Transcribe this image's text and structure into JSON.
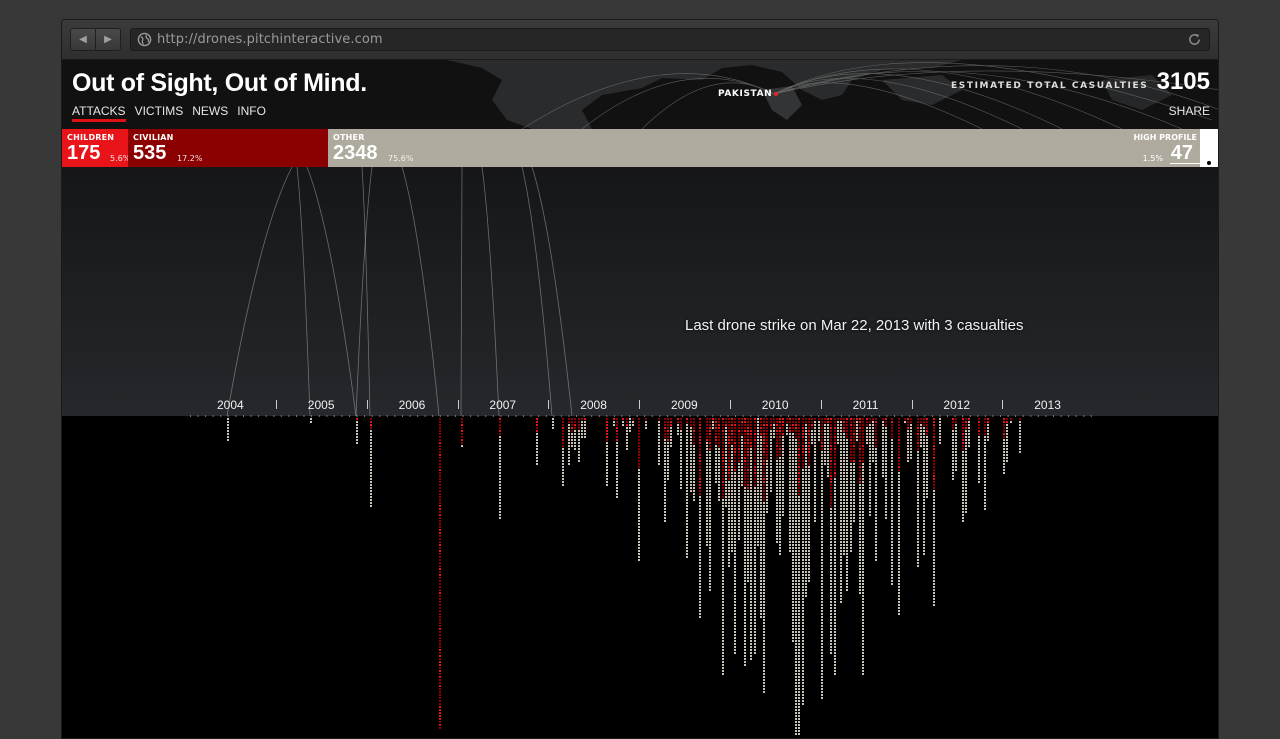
{
  "browser": {
    "url": "http://drones.pitchinteractive.com",
    "back_icon": "back-arrow-icon",
    "forward_icon": "forward-arrow-icon",
    "site_icon": "globe-icon",
    "reload_icon": "reload-icon"
  },
  "header": {
    "title": "Out of Sight, Out of Mind.",
    "nav": [
      "ATTACKS",
      "VICTIMS",
      "NEWS",
      "INFO"
    ],
    "active_nav": "ATTACKS",
    "map_label": "PAKISTAN",
    "total_label": "ESTIMATED TOTAL CASUALTIES",
    "total_value": "3105",
    "share": "SHARE"
  },
  "categories": {
    "children": {
      "label": "CHILDREN",
      "value": "175",
      "pct": "5.6%",
      "color": "#e8141a"
    },
    "civilian": {
      "label": "CIVILIAN",
      "value": "535",
      "pct": "17.2%",
      "color": "#8b0000"
    },
    "other": {
      "label": "OTHER",
      "value": "2348",
      "pct": "75.6%",
      "color": "#aeab9e"
    },
    "high_profile": {
      "label": "HIGH PROFILE",
      "value": "47",
      "pct": "1.5%",
      "color": "#ffffff"
    }
  },
  "annotation": "Last drone strike on Mar 22, 2013 with 3 casualties",
  "timeline": {
    "years": [
      "2004",
      "2005",
      "2006",
      "2007",
      "2008",
      "2009",
      "2010",
      "2011",
      "2012",
      "2013"
    ]
  }
}
